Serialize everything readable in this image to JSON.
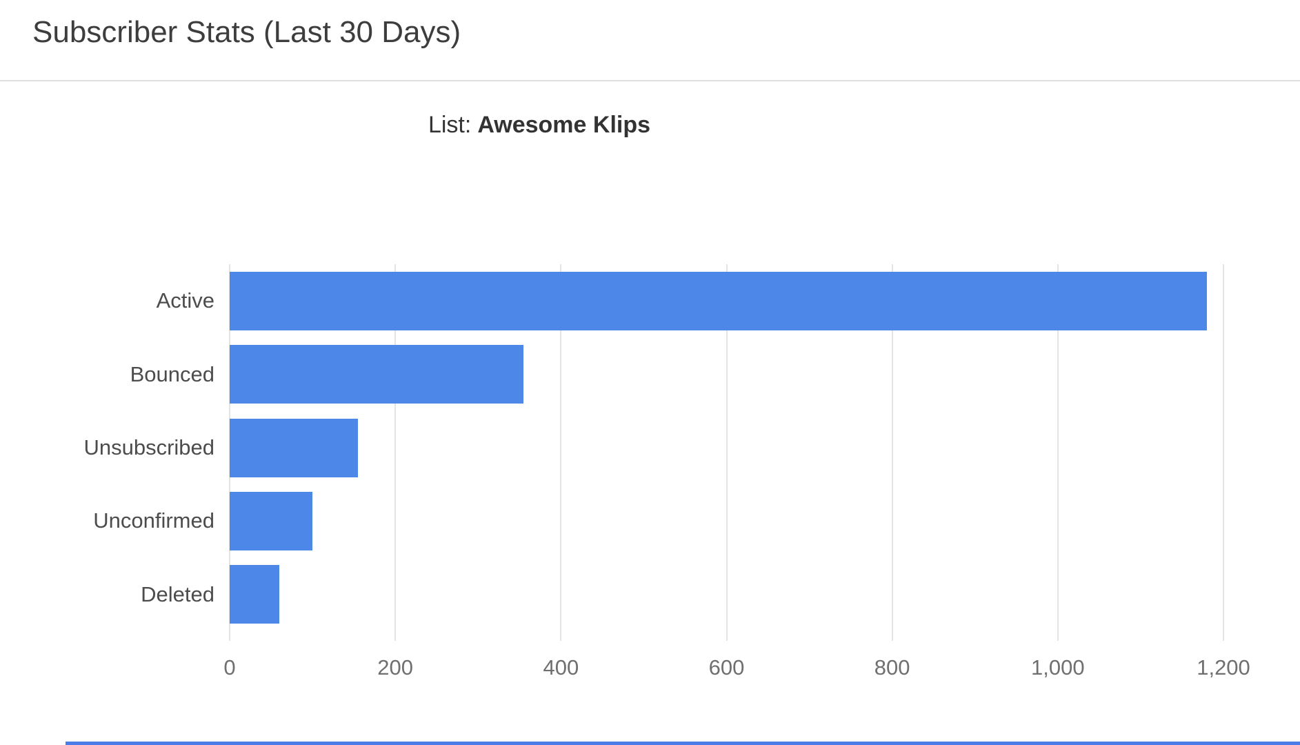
{
  "header": {
    "title": "Subscriber Stats (Last 30 Days)"
  },
  "chart_data": {
    "type": "bar",
    "orientation": "horizontal",
    "subtitle_prefix": "List:",
    "list_name": "Awesome Klips",
    "categories": [
      "Active",
      "Bounced",
      "Unsubscribed",
      "Unconfirmed",
      "Deleted"
    ],
    "values": [
      1180,
      355,
      155,
      100,
      60
    ],
    "xlim": [
      0,
      1200
    ],
    "x_ticks": [
      0,
      200,
      400,
      600,
      800,
      1000,
      1200
    ],
    "x_tick_labels": [
      "0",
      "200",
      "400",
      "600",
      "800",
      "1,000",
      "1,200"
    ],
    "grid": "vertical-gridlines",
    "legend": "none",
    "bar_color": "#4d87e8"
  },
  "colors": {
    "bar": "#4d87e8",
    "gridline": "#e4e4e4",
    "divider": "#dedede",
    "bottom_line": "#4c7ce5"
  }
}
